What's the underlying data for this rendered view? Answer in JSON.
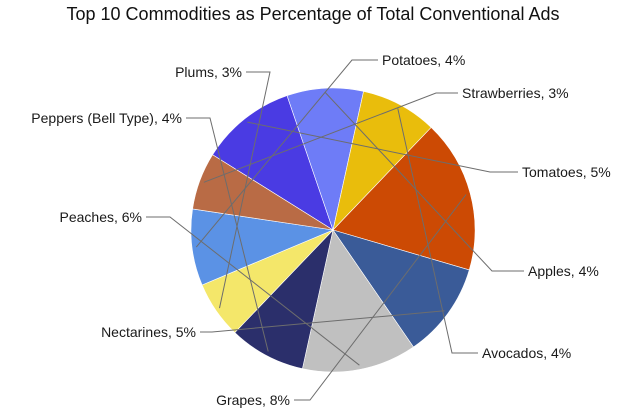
{
  "chart_data": {
    "type": "pie",
    "title": "Top 10 Commodities as Percentage of Total Conventional Ads",
    "slices": [
      {
        "name": "Tomatoes",
        "value": 5,
        "label": "Tomatoes, 5%",
        "color": "#4a3be3"
      },
      {
        "name": "Apples",
        "value": 4,
        "label": "Apples, 4%",
        "color": "#6e7cf7"
      },
      {
        "name": "Avocados",
        "value": 4,
        "label": "Avocados, 4%",
        "color": "#e9bd0c"
      },
      {
        "name": "Grapes",
        "value": 8,
        "label": "Grapes, 8%",
        "color": "#cc4a04"
      },
      {
        "name": "Nectarines",
        "value": 5,
        "label": "Nectarines, 5%",
        "color": "#3a5b98"
      },
      {
        "name": "Peaches",
        "value": 6,
        "label": "Peaches, 6%",
        "color": "#c0c0c0"
      },
      {
        "name": "Peppers (Bell Type)",
        "value": 4,
        "label": "Peppers (Bell Type), 4%",
        "color": "#2b2f6b"
      },
      {
        "name": "Plums",
        "value": 3,
        "label": "Plums, 3%",
        "color": "#f4e76a"
      },
      {
        "name": "Potatoes",
        "value": 4,
        "label": "Potatoes, 4%",
        "color": "#5b92e5"
      },
      {
        "name": "Strawberries",
        "value": 3,
        "label": "Strawberries, 3%",
        "color": "#b96b45"
      }
    ]
  }
}
